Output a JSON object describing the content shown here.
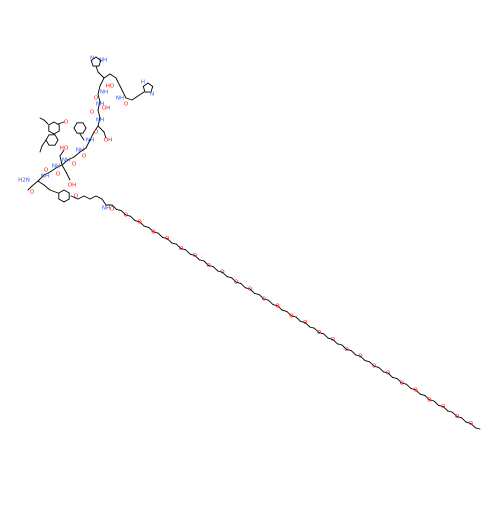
{
  "molecule": {
    "bond_color": "#000000",
    "oxygen_color": "#ff0d0d",
    "nitrogen_color": "#3050f8",
    "atom_labels": {
      "peg_oxygen": "O",
      "ester_oxygen": "O",
      "amide_nh": "NH",
      "amine": "H2N",
      "hydroxyl": "OH",
      "hydroxyl_alt": "HO",
      "carbonyl_oxygen": "O",
      "tetrazole_nh": "NH",
      "tetrazole_n": "N",
      "imidazole_nh": "H",
      "imidazole_n": "N"
    }
  }
}
